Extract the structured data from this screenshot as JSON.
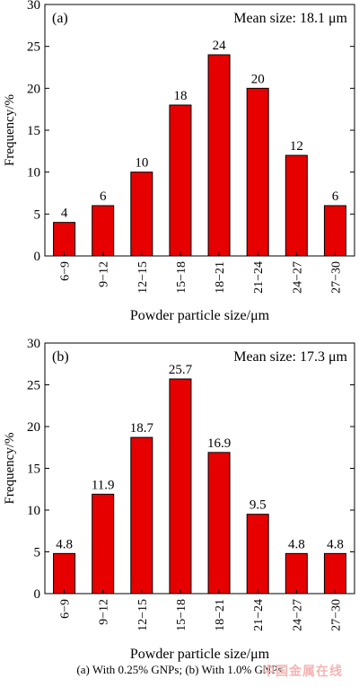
{
  "chart_data": [
    {
      "type": "bar",
      "panel_label": "(a)",
      "mean_label": "Mean size: 18.1 μm",
      "categories": [
        "6−9",
        "9−12",
        "12−15",
        "15−18",
        "18−21",
        "21−24",
        "24−27",
        "27−30"
      ],
      "values": [
        4,
        6,
        10,
        18,
        24,
        20,
        12,
        6
      ],
      "value_labels": [
        "4",
        "6",
        "10",
        "18",
        "24",
        "20",
        "12",
        "6"
      ],
      "xlabel": "Powder particle size/μm",
      "ylabel": "Frequency/%",
      "ylim": [
        0,
        30
      ],
      "yticks": [
        0,
        5,
        10,
        15,
        20,
        25,
        30
      ],
      "bar_color": "#e60000",
      "grid": false
    },
    {
      "type": "bar",
      "panel_label": "(b)",
      "mean_label": "Mean size: 17.3 μm",
      "categories": [
        "6−9",
        "9−12",
        "12−15",
        "15−18",
        "18−21",
        "21−24",
        "24−27",
        "27−30"
      ],
      "values": [
        4.8,
        11.9,
        18.7,
        25.7,
        16.9,
        9.5,
        4.8,
        4.8
      ],
      "value_labels": [
        "4.8",
        "11.9",
        "18.7",
        "25.7",
        "16.9",
        "9.5",
        "4.8",
        "4.8"
      ],
      "xlabel": "Powder particle size/μm",
      "ylabel": "Frequency/%",
      "ylim": [
        0,
        30
      ],
      "yticks": [
        0,
        5,
        10,
        15,
        20,
        25,
        30
      ],
      "bar_color": "#e60000",
      "grid": false
    }
  ],
  "caption": "(a) With  0.25% GNPs; (b) With 1.0% GNPs",
  "watermark": "中国金属在线"
}
